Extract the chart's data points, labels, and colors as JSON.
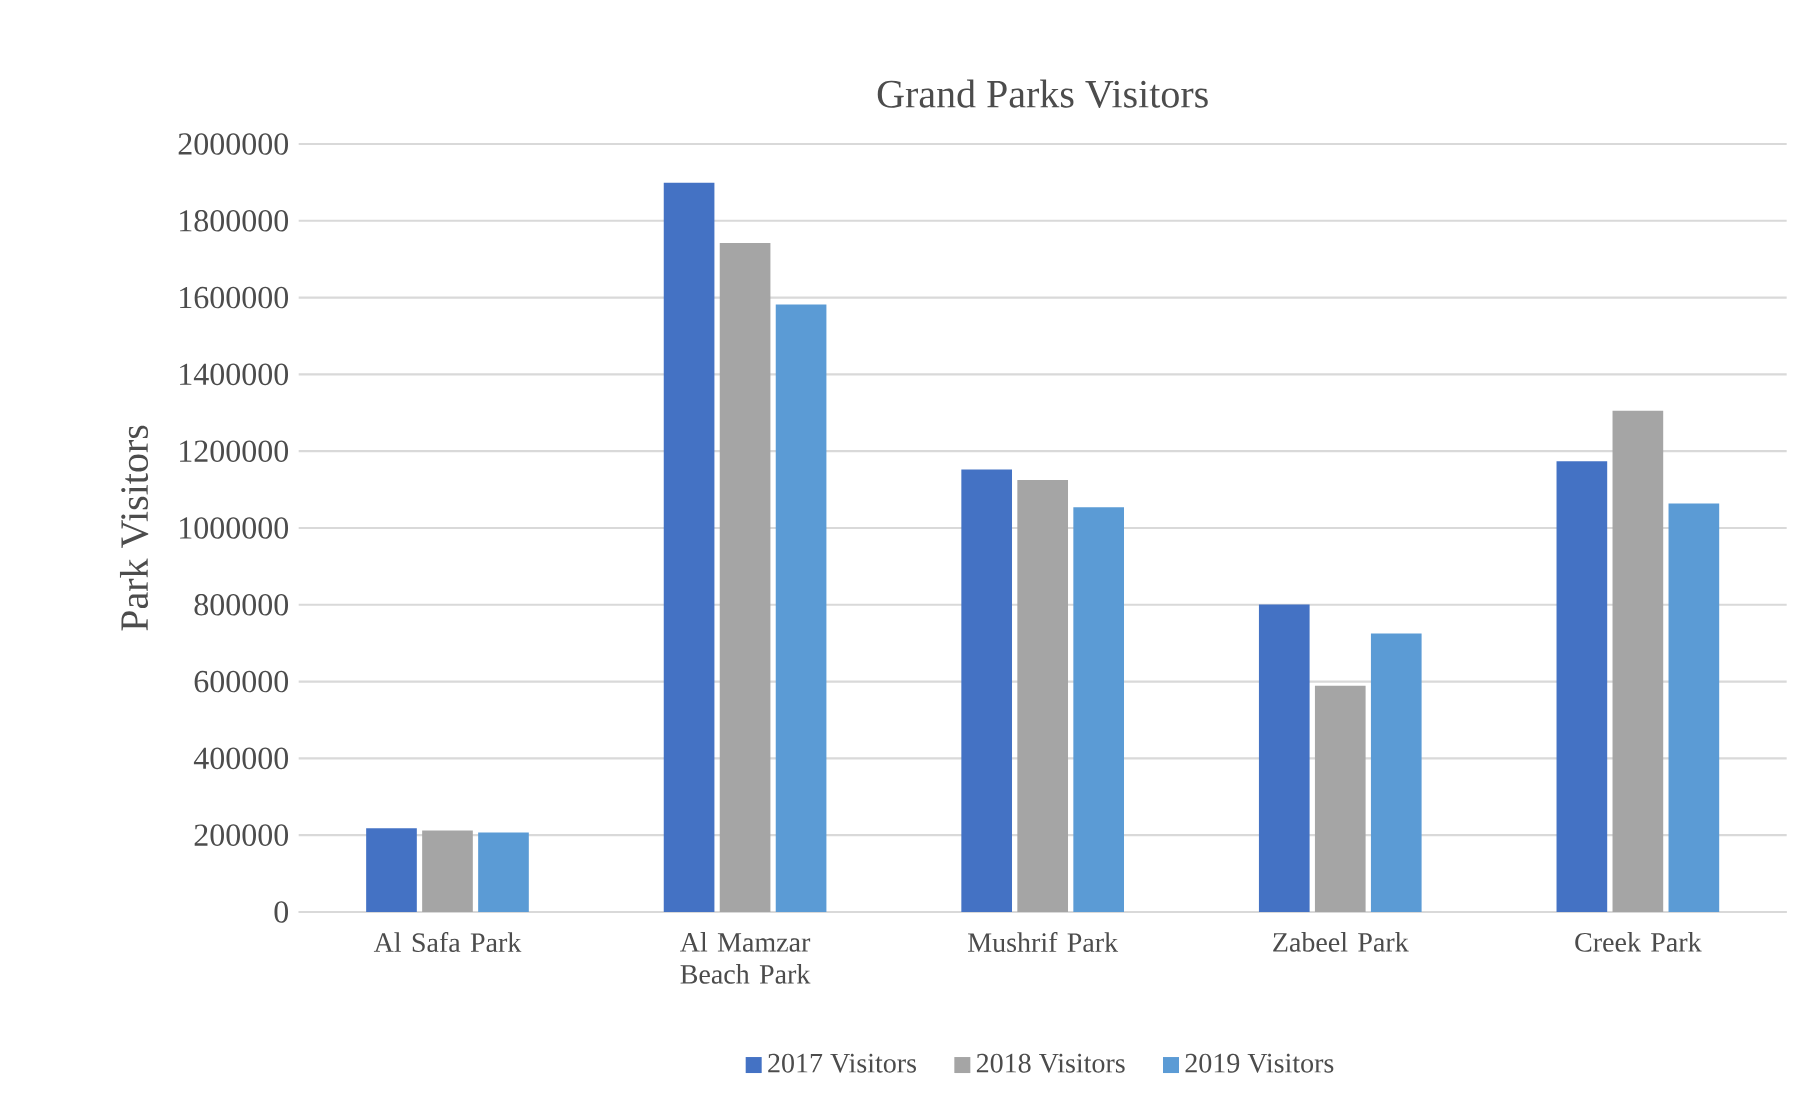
{
  "chart_data": {
    "type": "bar",
    "title": "Grand Parks Visitors",
    "ylabel": "Park Visitors",
    "categories": [
      "Al Safa Park",
      "Al Mamzar Beach Park",
      "Mushrif Park",
      "Zabeel Park",
      "Creek Park"
    ],
    "series": [
      {
        "name": "2017 Visitors",
        "color": "#4472c4",
        "values": [
          218000,
          1899000,
          1152000,
          801000,
          1174000
        ]
      },
      {
        "name": "2018 Visitors",
        "color": "#a5a5a5",
        "values": [
          212000,
          1742000,
          1125000,
          589000,
          1305000
        ]
      },
      {
        "name": "2019 Visitors",
        "color": "#5b9bd5",
        "values": [
          207000,
          1582000,
          1054000,
          725000,
          1064000
        ]
      }
    ],
    "ylim": [
      0,
      2000000
    ],
    "yticks": [
      0,
      200000,
      400000,
      600000,
      800000,
      1000000,
      1200000,
      1400000,
      1600000,
      1800000,
      2000000
    ],
    "grid": "y",
    "legend": "bottom"
  }
}
